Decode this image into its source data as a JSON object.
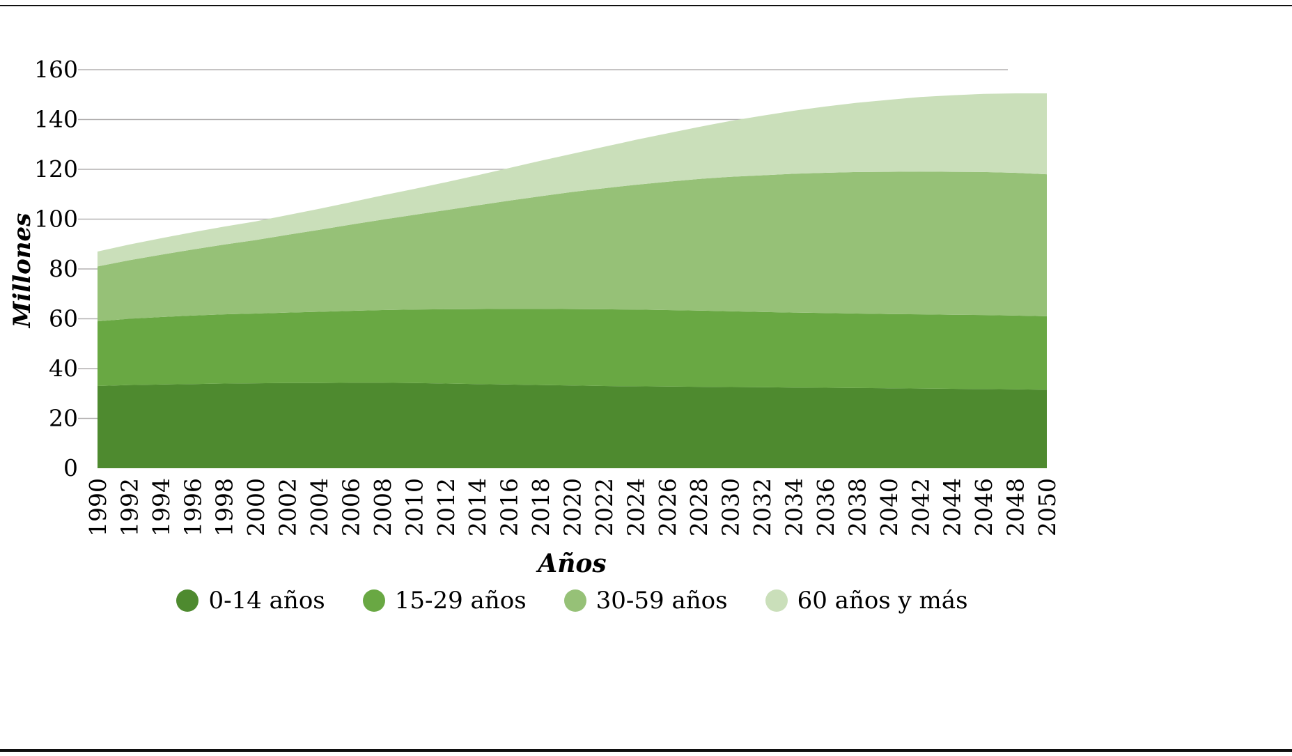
{
  "chart_data": {
    "type": "area",
    "stacked": true,
    "title": "",
    "xlabel": "Años",
    "ylabel": "Millones",
    "ylim": [
      0,
      160
    ],
    "x_range": [
      1990,
      2050
    ],
    "grid": "horizontal",
    "grid_color": "#b3b1b1",
    "legend_position": "bottom",
    "yticks": [
      0,
      20,
      40,
      60,
      80,
      100,
      120,
      140,
      160
    ],
    "xticks": [
      1990,
      1992,
      1994,
      1996,
      1998,
      2000,
      2002,
      2004,
      2006,
      2008,
      2010,
      2012,
      2014,
      2016,
      2018,
      2020,
      2022,
      2024,
      2026,
      2028,
      2030,
      2032,
      2034,
      2036,
      2038,
      2040,
      2042,
      2044,
      2046,
      2048,
      2050
    ],
    "x": [
      1990,
      1992,
      1994,
      1996,
      1998,
      2000,
      2002,
      2004,
      2006,
      2008,
      2010,
      2012,
      2014,
      2016,
      2018,
      2020,
      2022,
      2024,
      2026,
      2028,
      2030,
      2032,
      2034,
      2036,
      2038,
      2040,
      2042,
      2044,
      2046,
      2048,
      2050
    ],
    "series": [
      {
        "name": "0-14 años",
        "color": "#4e8a2f",
        "values": [
          33.0,
          33.4,
          33.6,
          33.8,
          34.0,
          34.1,
          34.2,
          34.2,
          34.3,
          34.3,
          34.2,
          34.0,
          33.8,
          33.6,
          33.4,
          33.2,
          33.0,
          32.9,
          32.8,
          32.7,
          32.6,
          32.5,
          32.4,
          32.3,
          32.2,
          32.1,
          32.0,
          31.9,
          31.8,
          31.7,
          31.5
        ]
      },
      {
        "name": "15-29 años",
        "color": "#69a843",
        "values": [
          26.0,
          26.6,
          27.1,
          27.5,
          27.8,
          28.0,
          28.3,
          28.6,
          28.9,
          29.2,
          29.5,
          29.8,
          30.1,
          30.4,
          30.6,
          30.7,
          30.8,
          30.8,
          30.7,
          30.6,
          30.4,
          30.2,
          30.1,
          30.0,
          29.9,
          29.8,
          29.8,
          29.7,
          29.7,
          29.6,
          29.5
        ]
      },
      {
        "name": "30-59 años",
        "color": "#96c177",
        "values": [
          22.0,
          23.5,
          25.0,
          26.5,
          28.0,
          29.5,
          31.2,
          32.9,
          34.6,
          36.3,
          38.0,
          39.8,
          41.6,
          43.4,
          45.2,
          47.0,
          48.6,
          50.1,
          51.5,
          52.8,
          54.0,
          54.9,
          55.7,
          56.3,
          56.8,
          57.1,
          57.3,
          57.4,
          57.4,
          57.3,
          57.0
        ]
      },
      {
        "name": "60 años y más",
        "color": "#cadfba",
        "values": [
          6.0,
          6.3,
          6.6,
          6.9,
          7.2,
          7.5,
          7.9,
          8.4,
          9.0,
          9.7,
          10.4,
          11.2,
          12.1,
          13.1,
          14.2,
          15.3,
          16.6,
          18.0,
          19.4,
          20.9,
          22.4,
          23.9,
          25.3,
          26.6,
          27.8,
          28.9,
          29.9,
          30.7,
          31.4,
          31.9,
          32.5
        ]
      }
    ]
  }
}
